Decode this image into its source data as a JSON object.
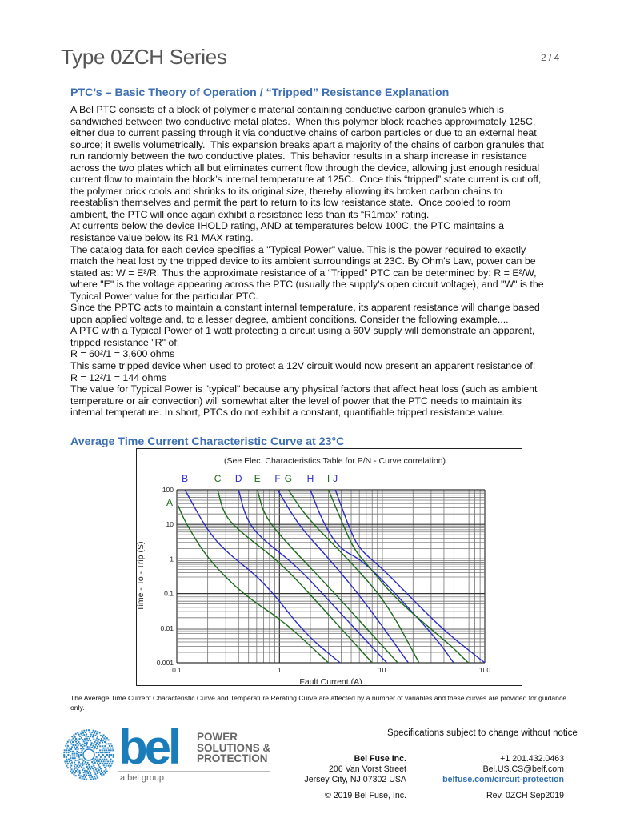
{
  "header": {
    "title": "Type 0ZCH Series",
    "page": "2 / 4"
  },
  "section1": {
    "heading": "PTC’s – Basic Theory of Operation / “Tripped” Resistance Explanation",
    "lines": [
      "A Bel PTC consists of a block of polymeric material containing conductive carbon granules which is",
      "sandwiched between two conductive metal plates.  When this polymer block reaches approximately 125C,",
      "either due to current passing through it via conductive chains of carbon particles or due to an external heat",
      "source; it swells volumetrically.  This expansion breaks apart a majority of the chains of carbon granules that",
      "run randomly between the two conductive plates.  This behavior results in a sharp increase in resistance",
      "across the two plates which all but eliminates current flow through the device, allowing just enough residual",
      "current flow to maintain the block’s internal temperature at 125C.  Once this “tripped” state current is cut off,",
      "the polymer brick cools and shrinks to its original size, thereby allowing its broken carbon chains to",
      "reestablish themselves and permit the part to return to its low resistance state.  Once cooled to room",
      "ambient, the PTC will once again exhibit a resistance less than its “R1max” rating.",
      "At currents below the device IHOLD rating, AND at temperatures below 100C, the PTC maintains a",
      "resistance value below its R1 MAX rating.",
      "The catalog data for each device specifies a \"Typical Power\" value. This is the power required to exactly",
      "match the heat lost by the tripped device to its ambient surroundings at 23C. By Ohm's Law, power can be",
      "stated as: W = E²/R. Thus the approximate resistance of a “Tripped” PTC can be determined by: R = E²/W,",
      "where \"E\" is the voltage appearing across the PTC (usually the supply's open circuit voltage), and \"W\" is the",
      "Typical Power value for the particular PTC.",
      "Since the PPTC acts to maintain a constant internal temperature, its apparent resistance will change based",
      "upon applied voltage and, to a lesser degree, ambient conditions. Consider the following example....",
      "A PTC with a Typical Power of 1 watt protecting a circuit using a 60V supply will demonstrate an apparent,",
      "tripped resistance \"R\" of:",
      "R = 60²/1 = 3,600 ohms",
      "This same tripped device when used to protect a 12V circuit would now present an apparent resistance of:",
      "R = 12²/1 = 144 ohms",
      "The value for Typical Power is \"typical\" because any physical factors that affect heat loss (such as ambient",
      "temperature or air convection) will somewhat alter the level of power that the PTC needs to maintain its",
      "internal temperature. In short, PTCs do not exhibit a constant, quantifiable tripped resistance value."
    ]
  },
  "section2": {
    "heading": "Average Time Current Characteristic Curve at 23°C",
    "caption": "The Average Time Current Characteristic Curve and Temperature Rerating Curve are affected by a number of variables and these curves are provided for guidance only."
  },
  "chart_data": {
    "type": "line",
    "title": "(See Elec. Characteristics Table for P/N - Curve correlation)",
    "xlabel": "Fault Current (A)",
    "ylabel": "Time - To - Trip (S)",
    "xscale": "log",
    "yscale": "log",
    "xlim": [
      0.1,
      100
    ],
    "ylim": [
      0.001,
      100
    ],
    "grid": true,
    "xticks": [
      "0.1",
      "1",
      "10",
      "100"
    ],
    "yticks": [
      "100",
      "10",
      "1",
      "0.1",
      "0.01",
      "0.001"
    ],
    "colors": {
      "blue": "#2b2bc4",
      "green": "#1d6b1d"
    },
    "series": [
      {
        "name": "A",
        "color": "green",
        "points": [
          [
            0.103,
            35
          ],
          [
            0.12,
            12
          ],
          [
            0.2,
            1
          ],
          [
            0.45,
            0.09
          ],
          [
            1.1,
            0.016
          ],
          [
            3,
            0.001
          ]
        ]
      },
      {
        "name": "B",
        "color": "blue",
        "points": [
          [
            0.12,
            100
          ],
          [
            0.2,
            6.4
          ],
          [
            0.31,
            1.5
          ],
          [
            0.71,
            0.22
          ],
          [
            1.8,
            0.0065
          ],
          [
            3.9,
            0.001
          ]
        ]
      },
      {
        "name": "C",
        "color": "green",
        "points": [
          [
            0.25,
            100
          ],
          [
            0.29,
            18
          ],
          [
            0.44,
            5.3
          ],
          [
            1.03,
            0.77
          ],
          [
            2.5,
            0.045
          ],
          [
            8,
            0.001
          ]
        ]
      },
      {
        "name": "D",
        "color": "blue",
        "points": [
          [
            0.4,
            100
          ],
          [
            0.47,
            15.5
          ],
          [
            0.63,
            4.5
          ],
          [
            1.46,
            0.64
          ],
          [
            3,
            0.065
          ],
          [
            11.1,
            0.001
          ]
        ]
      },
      {
        "name": "E",
        "color": "green",
        "points": [
          [
            0.61,
            100
          ],
          [
            0.71,
            18
          ],
          [
            1.14,
            3.2
          ],
          [
            3,
            0.16
          ],
          [
            14.2,
            0.001
          ]
        ]
      },
      {
        "name": "F",
        "color": "blue",
        "points": [
          [
            0.96,
            100
          ],
          [
            1.55,
            9
          ],
          [
            3.15,
            0.9
          ],
          [
            6.9,
            0.054
          ],
          [
            18,
            0.001
          ]
        ]
      },
      {
        "name": "G",
        "color": "green",
        "points": [
          [
            1.22,
            100
          ],
          [
            1.85,
            15.5
          ],
          [
            4.8,
            0.9
          ],
          [
            11.1,
            0.054
          ],
          [
            22.9,
            0.001
          ]
        ]
      },
      {
        "name": "H",
        "color": "blue",
        "points": [
          [
            2,
            100
          ],
          [
            2.6,
            13
          ],
          [
            3.8,
            2
          ],
          [
            6.5,
            0.9
          ],
          [
            14.2,
            0.085
          ],
          [
            34.7,
            0.0045
          ],
          [
            49.7,
            0.001
          ]
        ]
      },
      {
        "name": "I",
        "color": "green",
        "points": [
          [
            3,
            100
          ],
          [
            4,
            13
          ],
          [
            5.3,
            1.9
          ],
          [
            7.3,
            0.64
          ],
          [
            13.2,
            0.077
          ],
          [
            30,
            0.0093
          ],
          [
            46.5,
            0.0032
          ],
          [
            69,
            0.001
          ]
        ]
      },
      {
        "name": "J",
        "color": "blue",
        "points": [
          [
            3.5,
            100
          ],
          [
            4.8,
            7.7
          ],
          [
            6,
            1.9
          ],
          [
            10,
            0.54
          ],
          [
            19,
            0.077
          ],
          [
            41.6,
            0.0077
          ],
          [
            100,
            0.001
          ]
        ]
      }
    ]
  },
  "footer": {
    "logo": {
      "wordmark": "bel",
      "tagline": [
        "POWER",
        "SOLUTIONS &",
        "PROTECTION"
      ],
      "group": "a bel group"
    },
    "notice": "Specifications subject to change without notice",
    "company": "Bel Fuse Inc.",
    "street": "206 Van Vorst Street",
    "city": "Jersey City, NJ 07302 USA",
    "phone": "+1 201.432.0463",
    "email": "Bel.US.CS@belf.com",
    "web": "belfuse.com/circuit-protection",
    "copyright": "© 2019 Bel Fuse, Inc.",
    "revision": "Rev. 0ZCH Sep2019"
  }
}
